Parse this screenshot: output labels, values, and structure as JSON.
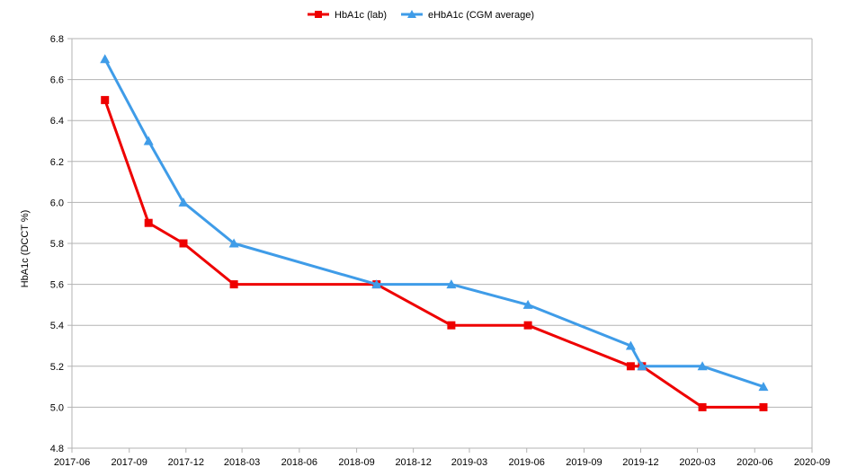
{
  "chart_data": {
    "type": "line",
    "title": "",
    "xlabel": "",
    "ylabel": "HbA1c (DCCT %)",
    "ylim": [
      4.8,
      6.8
    ],
    "yticks": [
      "4.8",
      "5.0",
      "5.2",
      "5.4",
      "5.6",
      "5.8",
      "6.0",
      "6.2",
      "6.4",
      "6.6",
      "6.8"
    ],
    "xlim": [
      "2017-06-01",
      "2020-09-01"
    ],
    "xticks": [
      "2017-06",
      "2017-09",
      "2017-12",
      "2018-03",
      "2018-06",
      "2018-09",
      "2018-12",
      "2019-03",
      "2019-06",
      "2019-09",
      "2019-12",
      "2020-03",
      "2020-06",
      "2020-09"
    ],
    "grid": true,
    "legend_position": "top-center",
    "series": [
      {
        "name": "HbA1c (lab)",
        "color": "#ee0000",
        "marker": "square",
        "points": [
          {
            "x": "2017-07-24",
            "y": 6.5
          },
          {
            "x": "2017-10-02",
            "y": 5.9
          },
          {
            "x": "2017-11-27",
            "y": 5.8
          },
          {
            "x": "2018-02-16",
            "y": 5.6
          },
          {
            "x": "2018-10-03",
            "y": 5.6
          },
          {
            "x": "2019-01-31",
            "y": 5.4
          },
          {
            "x": "2019-06-03",
            "y": 5.4
          },
          {
            "x": "2019-11-15",
            "y": 5.2
          },
          {
            "x": "2019-12-03",
            "y": 5.2
          },
          {
            "x": "2020-03-09",
            "y": 5.0
          },
          {
            "x": "2020-06-15",
            "y": 5.0
          }
        ]
      },
      {
        "name": "eHbA1c (CGM average)",
        "color": "#3f9ce8",
        "marker": "triangle",
        "points": [
          {
            "x": "2017-07-24",
            "y": 6.7
          },
          {
            "x": "2017-10-02",
            "y": 6.3
          },
          {
            "x": "2017-11-27",
            "y": 6.0
          },
          {
            "x": "2018-02-16",
            "y": 5.8
          },
          {
            "x": "2018-10-03",
            "y": 5.6
          },
          {
            "x": "2019-01-31",
            "y": 5.6
          },
          {
            "x": "2019-06-03",
            "y": 5.5
          },
          {
            "x": "2019-11-15",
            "y": 5.3
          },
          {
            "x": "2019-12-03",
            "y": 5.2
          },
          {
            "x": "2020-03-09",
            "y": 5.2
          },
          {
            "x": "2020-06-15",
            "y": 5.1
          }
        ]
      }
    ]
  }
}
